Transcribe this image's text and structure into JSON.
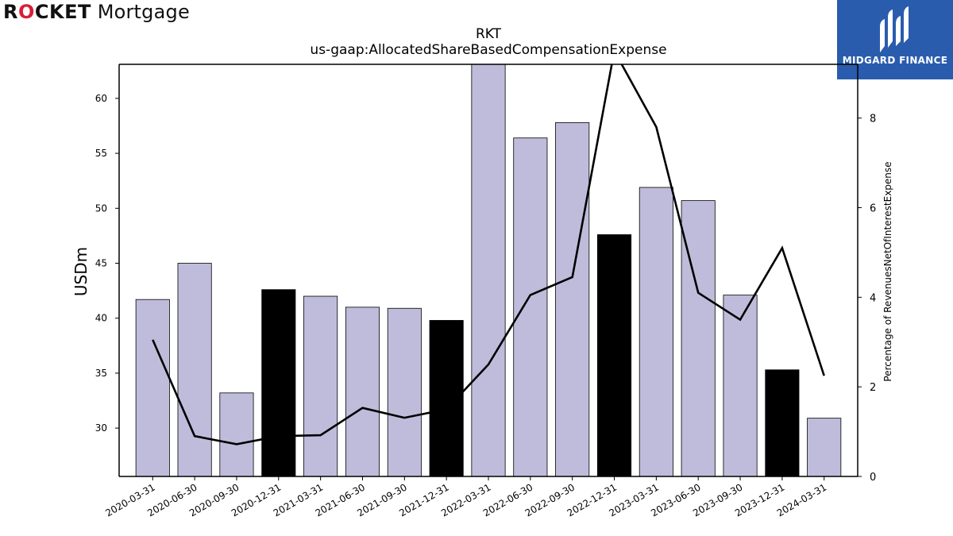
{
  "logos": {
    "left_brand": "ROCKET Mortgage",
    "right_brand": "MIDGARD FINANCE"
  },
  "colors": {
    "bar_default": "#bfbcdb",
    "bar_highlight": "#000000",
    "line": "#000000",
    "brand_red": "#d81e3a",
    "brand_blue": "#2a5cad"
  },
  "chart_data": {
    "type": "bar",
    "title": "RKT",
    "subtitle": "us-gaap:AllocatedShareBasedCompensationExpense",
    "ylabel": "USDm",
    "y2label": "Percentage of RevenuesNetOfInterestExpense",
    "ylim": [
      25.6,
      63.1
    ],
    "y2lim": [
      0,
      9.2
    ],
    "yticks": [
      30,
      35,
      40,
      45,
      50,
      55,
      60
    ],
    "y2ticks": [
      0,
      2,
      4,
      6,
      8
    ],
    "grid": false,
    "categories": [
      "2020-03-31",
      "2020-06-30",
      "2020-09-30",
      "2020-12-31",
      "2021-03-31",
      "2021-06-30",
      "2021-09-30",
      "2021-12-31",
      "2022-03-31",
      "2022-06-30",
      "2022-09-30",
      "2022-12-31",
      "2023-03-31",
      "2023-06-30",
      "2023-09-30",
      "2023-12-31",
      "2024-03-31"
    ],
    "series": [
      {
        "kind": "bar",
        "axis": "left",
        "values": [
          41.7,
          45.0,
          33.2,
          42.6,
          42.0,
          41.0,
          40.9,
          39.8,
          63.1,
          56.4,
          57.8,
          47.6,
          51.9,
          50.7,
          42.1,
          35.3,
          30.9
        ],
        "highlight": [
          false,
          false,
          false,
          true,
          false,
          false,
          false,
          true,
          false,
          false,
          false,
          true,
          false,
          false,
          false,
          true,
          false
        ]
      },
      {
        "kind": "line",
        "axis": "right",
        "values": [
          3.05,
          0.9,
          0.72,
          0.9,
          0.92,
          1.53,
          1.31,
          1.5,
          2.5,
          4.05,
          4.45,
          9.5,
          7.8,
          4.1,
          3.5,
          5.1,
          2.25
        ]
      }
    ]
  }
}
